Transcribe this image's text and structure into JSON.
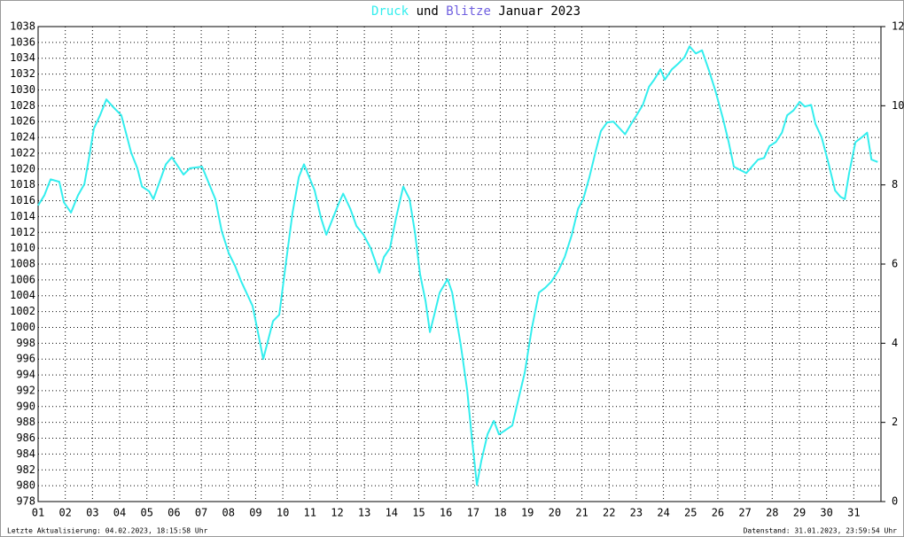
{
  "chart_data": {
    "type": "line",
    "title_connector": "und",
    "title_period": "Januar 2023",
    "y2_label": "Blitze",
    "y2_color": "#7060e0",
    "footer_left": "Letzte Aktualisierung: 04.02.2023, 18:15:58 Uhr",
    "footer_right": "Datenstand: 31.01.2023, 23:59:54 Uhr",
    "grid": true,
    "xlim": [
      1,
      32
    ],
    "xticks": [
      {
        "value": 1,
        "label": "01"
      },
      {
        "value": 2,
        "label": "02"
      },
      {
        "value": 3,
        "label": "03"
      },
      {
        "value": 4,
        "label": "04"
      },
      {
        "value": 5,
        "label": "05"
      },
      {
        "value": 6,
        "label": "06"
      },
      {
        "value": 7,
        "label": "07"
      },
      {
        "value": 8,
        "label": "08"
      },
      {
        "value": 9,
        "label": "09"
      },
      {
        "value": 10,
        "label": "10"
      },
      {
        "value": 11,
        "label": "11"
      },
      {
        "value": 12,
        "label": "12"
      },
      {
        "value": 13,
        "label": "13"
      },
      {
        "value": 14,
        "label": "14"
      },
      {
        "value": 15,
        "label": "15"
      },
      {
        "value": 16,
        "label": "16"
      },
      {
        "value": 17,
        "label": "17"
      },
      {
        "value": 18,
        "label": "18"
      },
      {
        "value": 19,
        "label": "19"
      },
      {
        "value": 20,
        "label": "20"
      },
      {
        "value": 21,
        "label": "21"
      },
      {
        "value": 22,
        "label": "22"
      },
      {
        "value": 23,
        "label": "23"
      },
      {
        "value": 24,
        "label": "24"
      },
      {
        "value": 25,
        "label": "25"
      },
      {
        "value": 26,
        "label": "26"
      },
      {
        "value": 27,
        "label": "27"
      },
      {
        "value": 28,
        "label": "28"
      },
      {
        "value": 29,
        "label": "29"
      },
      {
        "value": 30,
        "label": "30"
      },
      {
        "value": 31,
        "label": "31"
      }
    ],
    "ylim": [
      978,
      1038
    ],
    "yticks": [
      978,
      980,
      982,
      984,
      986,
      988,
      990,
      992,
      994,
      996,
      998,
      1000,
      1002,
      1004,
      1006,
      1008,
      1010,
      1012,
      1014,
      1016,
      1018,
      1020,
      1022,
      1024,
      1026,
      1028,
      1030,
      1032,
      1034,
      1036,
      1038
    ],
    "y2lim": [
      0,
      12
    ],
    "y2ticks": [
      0,
      2,
      4,
      6,
      8,
      10,
      12
    ],
    "x": [
      1.0,
      1.23,
      1.46,
      1.78,
      1.95,
      2.21,
      2.47,
      2.7,
      2.86,
      3.05,
      3.28,
      3.51,
      3.74,
      4.06,
      4.23,
      4.42,
      4.65,
      4.82,
      5.08,
      5.24,
      5.47,
      5.7,
      5.92,
      6.35,
      6.58,
      7.03,
      7.52,
      7.75,
      8.01,
      8.24,
      8.47,
      8.89,
      9.12,
      9.28,
      9.64,
      9.87,
      10.1,
      10.36,
      10.59,
      10.78,
      11.17,
      11.4,
      11.6,
      12.05,
      12.22,
      12.48,
      12.71,
      12.97,
      13.23,
      13.55,
      13.72,
      13.94,
      14.17,
      14.43,
      14.66,
      14.86,
      15.05,
      15.25,
      15.41,
      15.57,
      15.77,
      16.06,
      16.23,
      16.39,
      16.55,
      16.78,
      16.94,
      17.14,
      17.3,
      17.53,
      17.76,
      17.95,
      18.18,
      18.44,
      18.67,
      18.9,
      19.16,
      19.42,
      19.65,
      19.88,
      20.14,
      20.37,
      20.63,
      20.86,
      21.05,
      21.28,
      21.51,
      21.7,
      21.93,
      22.16,
      22.59,
      22.81,
      23.01,
      23.24,
      23.47,
      23.66,
      23.89,
      24.05,
      24.31,
      24.54,
      24.77,
      24.96,
      25.19,
      25.42,
      25.68,
      25.91,
      26.17,
      26.4,
      26.59,
      27.05,
      27.48,
      27.7,
      27.9,
      28.13,
      28.36,
      28.55,
      28.78,
      29.01,
      29.2,
      29.43,
      29.59,
      29.82,
      30.08,
      30.31,
      30.51,
      30.67,
      30.83,
      31.06,
      31.29,
      31.49,
      31.65,
      31.88
    ],
    "series": [
      {
        "name": "Druck",
        "color": "#33eeee",
        "values": [
          1015.4,
          1016.7,
          1018.7,
          1018.4,
          1015.8,
          1014.5,
          1016.7,
          1018.1,
          1021.2,
          1025.1,
          1026.8,
          1028.8,
          1027.9,
          1026.8,
          1024.6,
          1022.1,
          1020.1,
          1017.8,
          1017.2,
          1016.2,
          1018.4,
          1020.6,
          1021.5,
          1019.3,
          1020.1,
          1020.3,
          1016.2,
          1012.2,
          1009.4,
          1007.8,
          1005.8,
          1002.7,
          998.8,
          996.0,
          1000.8,
          1001.6,
          1007.8,
          1014.5,
          1019.0,
          1020.6,
          1017.3,
          1013.9,
          1011.7,
          1015.6,
          1016.9,
          1015.0,
          1012.8,
          1011.7,
          1010.0,
          1006.9,
          1008.9,
          1010.0,
          1013.9,
          1017.8,
          1016.2,
          1012.0,
          1006.7,
          1003.3,
          999.4,
          1001.6,
          1004.4,
          1006.1,
          1004.4,
          1001.0,
          997.7,
          992.1,
          986.5,
          980.1,
          983.1,
          986.5,
          988.2,
          986.5,
          987.0,
          987.6,
          991.0,
          994.3,
          999.9,
          1004.4,
          1005.0,
          1005.8,
          1007.2,
          1008.9,
          1011.7,
          1015.0,
          1016.2,
          1019.0,
          1022.3,
          1024.8,
          1025.9,
          1026.0,
          1024.4,
          1025.7,
          1026.8,
          1028.1,
          1030.4,
          1031.3,
          1032.6,
          1031.3,
          1032.6,
          1033.3,
          1034.1,
          1035.5,
          1034.6,
          1035.0,
          1032.4,
          1029.9,
          1026.6,
          1023.4,
          1020.3,
          1019.5,
          1021.2,
          1021.4,
          1022.9,
          1023.4,
          1024.6,
          1026.8,
          1027.4,
          1028.5,
          1027.9,
          1028.1,
          1025.7,
          1024.0,
          1020.6,
          1017.3,
          1016.5,
          1016.2,
          1019.5,
          1023.4,
          1024.0,
          1024.6,
          1021.2,
          1020.9
        ]
      }
    ]
  }
}
